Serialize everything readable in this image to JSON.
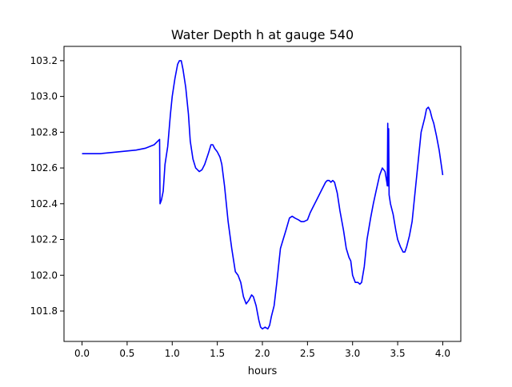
{
  "chart_data": {
    "type": "line",
    "title": "Water Depth h at gauge 540",
    "xlabel": "hours",
    "ylabel": "",
    "xlim": [
      -0.2,
      4.2
    ],
    "ylim": [
      101.63,
      103.28
    ],
    "grid": false,
    "xticks": [
      0.0,
      0.5,
      1.0,
      1.5,
      2.0,
      2.5,
      3.0,
      3.5,
      4.0
    ],
    "xtick_labels": [
      "0.0",
      "0.5",
      "1.0",
      "1.5",
      "2.0",
      "2.5",
      "3.0",
      "3.5",
      "4.0"
    ],
    "yticks": [
      101.8,
      102.0,
      102.2,
      102.4,
      102.6,
      102.8,
      103.0,
      103.2
    ],
    "ytick_labels": [
      "101.8",
      "102.0",
      "102.2",
      "102.4",
      "102.6",
      "102.8",
      "103.0",
      "103.2"
    ],
    "series": [
      {
        "name": "",
        "color": "#0000ff",
        "x": [
          0.0,
          0.2,
          0.4,
          0.6,
          0.7,
          0.8,
          0.86,
          0.865,
          0.88,
          0.9,
          0.92,
          0.95,
          0.98,
          1.0,
          1.03,
          1.06,
          1.08,
          1.1,
          1.12,
          1.15,
          1.18,
          1.2,
          1.23,
          1.26,
          1.3,
          1.33,
          1.36,
          1.4,
          1.43,
          1.45,
          1.47,
          1.5,
          1.53,
          1.55,
          1.58,
          1.62,
          1.66,
          1.7,
          1.73,
          1.76,
          1.79,
          1.82,
          1.85,
          1.88,
          1.9,
          1.93,
          1.96,
          1.98,
          2.0,
          2.03,
          2.06,
          2.08,
          2.1,
          2.13,
          2.16,
          2.2,
          2.23,
          2.26,
          2.3,
          2.33,
          2.36,
          2.4,
          2.43,
          2.46,
          2.5,
          2.53,
          2.56,
          2.6,
          2.63,
          2.66,
          2.7,
          2.72,
          2.74,
          2.76,
          2.78,
          2.8,
          2.83,
          2.86,
          2.9,
          2.93,
          2.96,
          2.98,
          3.0,
          3.03,
          3.06,
          3.08,
          3.1,
          3.13,
          3.16,
          3.2,
          3.23,
          3.26,
          3.3,
          3.33,
          3.36,
          3.38,
          3.385,
          3.39,
          3.395,
          3.4,
          3.405,
          3.42,
          3.45,
          3.48,
          3.5,
          3.53,
          3.56,
          3.58,
          3.6,
          3.63,
          3.66,
          3.7,
          3.73,
          3.76,
          3.8,
          3.82,
          3.84,
          3.86,
          3.88,
          3.9,
          3.93,
          3.96,
          4.0
        ],
        "y": [
          102.68,
          102.68,
          102.69,
          102.7,
          102.71,
          102.73,
          102.76,
          102.4,
          102.42,
          102.47,
          102.62,
          102.72,
          102.9,
          103.0,
          103.1,
          103.18,
          103.2,
          103.2,
          103.15,
          103.05,
          102.9,
          102.75,
          102.65,
          102.6,
          102.58,
          102.59,
          102.62,
          102.68,
          102.73,
          102.73,
          102.71,
          102.69,
          102.66,
          102.62,
          102.5,
          102.3,
          102.15,
          102.02,
          102.0,
          101.96,
          101.88,
          101.84,
          101.86,
          101.89,
          101.88,
          101.83,
          101.75,
          101.71,
          101.7,
          101.71,
          101.7,
          101.72,
          101.77,
          101.83,
          101.96,
          102.15,
          102.2,
          102.25,
          102.32,
          102.33,
          102.32,
          102.31,
          102.3,
          102.3,
          102.31,
          102.35,
          102.38,
          102.42,
          102.45,
          102.48,
          102.52,
          102.53,
          102.53,
          102.52,
          102.53,
          102.52,
          102.46,
          102.36,
          102.25,
          102.15,
          102.1,
          102.08,
          102.0,
          101.96,
          101.96,
          101.95,
          101.96,
          102.05,
          102.2,
          102.32,
          102.4,
          102.47,
          102.56,
          102.6,
          102.58,
          102.52,
          102.5,
          102.85,
          102.5,
          102.82,
          102.45,
          102.4,
          102.34,
          102.25,
          102.2,
          102.16,
          102.13,
          102.13,
          102.16,
          102.22,
          102.3,
          102.5,
          102.65,
          102.8,
          102.88,
          102.93,
          102.94,
          102.92,
          102.88,
          102.85,
          102.78,
          102.7,
          102.56
        ]
      }
    ]
  }
}
